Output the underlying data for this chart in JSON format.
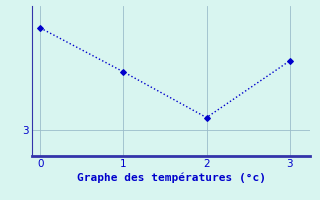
{
  "x": [
    0,
    1,
    2,
    3
  ],
  "y": [
    5.8,
    4.6,
    3.35,
    4.9
  ],
  "line_color": "#0000cc",
  "marker": "D",
  "marker_size": 3,
  "background_color": "#d8f5f0",
  "grid_color": "#9bbcca",
  "axis_color": "#3333aa",
  "xlabel": "Graphe des températures (°c)",
  "xlabel_color": "#0000cc",
  "xlabel_fontsize": 8,
  "tick_color": "#0000cc",
  "tick_fontsize": 7.5,
  "xlim": [
    -0.1,
    3.25
  ],
  "ylim": [
    2.3,
    6.4
  ],
  "yticks": [
    3
  ],
  "xticks": [
    0,
    1,
    2,
    3
  ],
  "linewidth": 1.0,
  "linestyle": ":"
}
